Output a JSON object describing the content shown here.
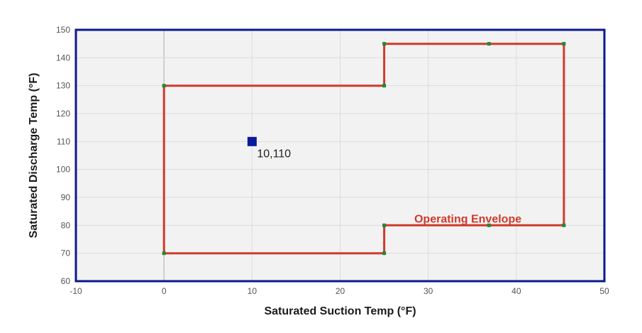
{
  "chart_data": {
    "type": "scatter",
    "title": "",
    "xlabel": "Saturated Suction Temp (°F)",
    "ylabel": "Saturated Discharge Temp (°F)",
    "xlim": [
      -10,
      50
    ],
    "ylim": [
      60,
      150
    ],
    "xticks": [
      -10,
      0,
      10,
      20,
      30,
      40,
      50
    ],
    "yticks": [
      60,
      70,
      80,
      90,
      100,
      110,
      120,
      130,
      140,
      150
    ],
    "grid": true,
    "series": [
      {
        "name": "Operating Envelope",
        "kind": "polygon",
        "color": "#d0392b",
        "vertex_color": "#1e8a3a",
        "points": [
          [
            0,
            70
          ],
          [
            0,
            130
          ],
          [
            25,
            130
          ],
          [
            25,
            145
          ],
          [
            36.9,
            145
          ],
          [
            45.4,
            145
          ],
          [
            45.4,
            80
          ],
          [
            36.9,
            80
          ],
          [
            25,
            80
          ],
          [
            25,
            70
          ],
          [
            0,
            70
          ]
        ]
      },
      {
        "kind": "point",
        "color": "#0a1a9c",
        "points": [
          [
            10,
            110
          ]
        ],
        "labels": [
          "10,110"
        ]
      }
    ],
    "annotations": [
      {
        "text": "Operating Envelope",
        "x": 34.5,
        "y": 82.5,
        "color": "#d0392b"
      }
    ]
  },
  "colors": {
    "plot_background": "#f2f2f2",
    "plot_border": "#0a1a8c",
    "grid": "#dcdcdc"
  }
}
